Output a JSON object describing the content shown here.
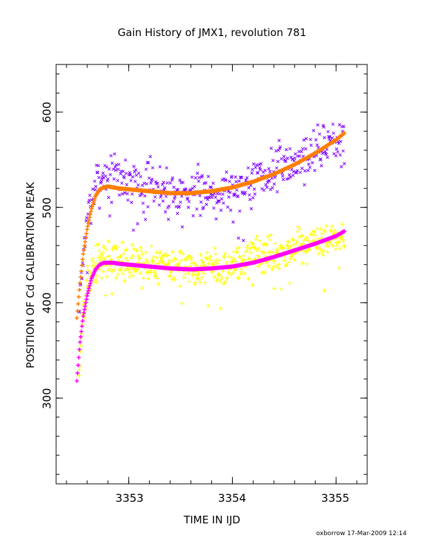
{
  "chart_data": {
    "type": "scatter",
    "title": "Gain History of JMX1, revolution 781",
    "xlabel": "TIME IN IJD",
    "ylabel": "POSITION OF Cd CALIBRATION PEAK",
    "xlim": [
      3352.3,
      3355.3
    ],
    "ylim": [
      210,
      650
    ],
    "x_ticks": [
      3353,
      3354,
      3355
    ],
    "y_ticks": [
      300,
      400,
      500,
      600
    ],
    "x_tick_labels": [
      "3353",
      "3354",
      "3355"
    ],
    "y_tick_labels": [
      "300",
      "400",
      "500",
      "600"
    ],
    "x_minor_step": 0.2,
    "y_minor_step": 20,
    "grid": false,
    "series": [
      {
        "kind": "scatter",
        "marker": "x",
        "color": "#7f00ff",
        "noise": 18,
        "n": 440,
        "seed": 7,
        "x": [
          3352.52,
          3352.55,
          3352.6,
          3352.65,
          3352.7,
          3352.75,
          3352.8,
          3352.9,
          3353.0,
          3353.2,
          3353.4,
          3353.6,
          3353.8,
          3354.0,
          3354.2,
          3354.4,
          3354.6,
          3354.8,
          3355.0,
          3355.08
        ],
        "y": [
          385,
          440,
          487,
          512,
          528,
          534,
          534,
          531,
          528,
          522,
          518,
          516,
          517,
          520,
          528,
          538,
          548,
          560,
          574,
          580
        ]
      },
      {
        "kind": "scatter",
        "marker": "+",
        "color": "#ffff00",
        "noise": 14,
        "n": 560,
        "seed": 13,
        "x": [
          3352.52,
          3352.55,
          3352.6,
          3352.65,
          3352.7,
          3352.75,
          3352.8,
          3352.9,
          3353.0,
          3353.2,
          3353.4,
          3353.6,
          3353.8,
          3354.0,
          3354.2,
          3354.4,
          3354.6,
          3354.8,
          3355.0,
          3355.08
        ],
        "y": [
          325,
          375,
          415,
          432,
          440,
          444,
          445,
          443,
          442,
          440,
          438,
          436,
          437,
          440,
          447,
          452,
          456,
          461,
          467,
          470
        ]
      },
      {
        "kind": "fit",
        "marker": "+",
        "color": "#ff7f00",
        "x": [
          3352.5,
          3352.53,
          3352.56,
          3352.6,
          3352.64,
          3352.68,
          3352.72,
          3352.76,
          3352.8,
          3352.85,
          3352.9,
          3353.0,
          3353.1,
          3353.2,
          3353.4,
          3353.6,
          3353.8,
          3354.0,
          3354.2,
          3354.4,
          3354.6,
          3354.8,
          3355.0,
          3355.08
        ],
        "y": [
          384,
          420,
          450,
          478,
          498,
          512,
          519,
          521,
          522,
          521,
          520,
          519,
          518,
          517,
          515,
          515,
          517,
          521,
          527,
          535,
          545,
          557,
          571,
          578
        ]
      },
      {
        "kind": "fit",
        "marker": "+",
        "color": "#ff00ff",
        "x": [
          3352.5,
          3352.53,
          3352.56,
          3352.6,
          3352.64,
          3352.68,
          3352.72,
          3352.76,
          3352.8,
          3352.85,
          3352.9,
          3353.0,
          3353.2,
          3353.4,
          3353.6,
          3353.8,
          3354.0,
          3354.2,
          3354.4,
          3354.6,
          3354.8,
          3355.0,
          3355.08
        ],
        "y": [
          318,
          358,
          385,
          408,
          425,
          435,
          440,
          442,
          442,
          442,
          441,
          440,
          438,
          436,
          435,
          436,
          438,
          442,
          448,
          455,
          462,
          470,
          475
        ]
      }
    ]
  },
  "footer": {
    "credit": "oxborrow 17-Mar-2009 12:14"
  }
}
